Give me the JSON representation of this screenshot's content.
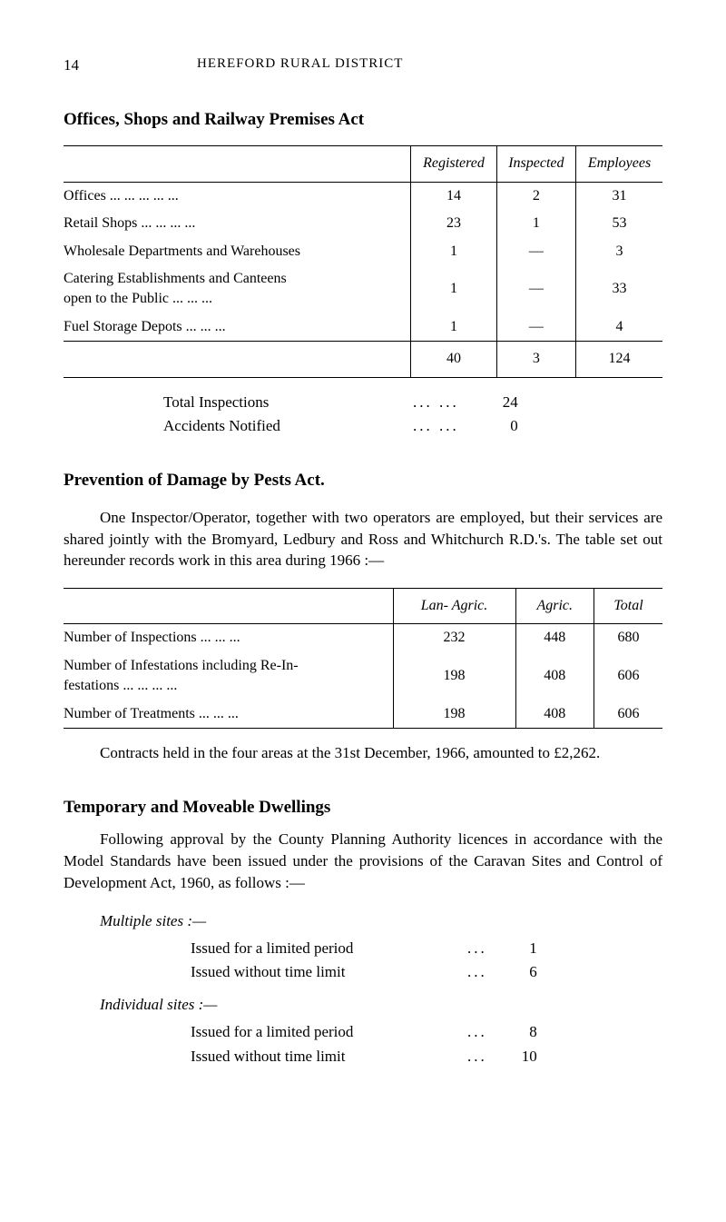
{
  "page": {
    "number": "14",
    "title": "HEREFORD RURAL DISTRICT"
  },
  "section1": {
    "heading": "Offices, Shops and Railway Premises Act",
    "table": {
      "columns": [
        "",
        "Registered",
        "Inspected",
        "Employees"
      ],
      "rows": [
        [
          "Offices       ...       ...       ...       ...       ...",
          "14",
          "2",
          "31"
        ],
        [
          "Retail Shops          ...       ...       ...       ...",
          "23",
          "1",
          "53"
        ],
        [
          "Wholesale Departments and Warehouses",
          "1",
          "—",
          "3"
        ],
        [
          "Catering Establishments   and   Canteens\n      open to the Public    ...        ...        ...",
          "1",
          "—",
          "33"
        ],
        [
          "Fuel Storage Depots        ...       ...       ...",
          "1",
          "—",
          "4"
        ]
      ],
      "totals": [
        "",
        "40",
        "3",
        "124"
      ]
    },
    "stats": [
      {
        "label": "Total Inspections",
        "value": "24"
      },
      {
        "label": "Accidents Notified",
        "value": "0"
      }
    ]
  },
  "section2": {
    "heading": "Prevention of Damage by Pests Act.",
    "para": "One Inspector/Operator, together with two operators are employed, but their services are shared jointly with the Bromyard, Ledbury and Ross and Whitchurch R.D.'s. The table set out hereunder records work in this area during 1966 :—",
    "table": {
      "columns": [
        "",
        "Lan- Agric.",
        "Agric.",
        "Total"
      ],
      "rows": [
        [
          "Number of Inspections      ...        ...        ...",
          "232",
          "448",
          "680"
        ],
        [
          "Number of Infestations including Re-In-\n   festations              ...       ...       ...       ...",
          "198",
          "408",
          "606"
        ],
        [
          "Number of Treatments     ...        ...        ...",
          "198",
          "408",
          "606"
        ]
      ]
    },
    "para2": "Contracts held in the four areas at the 31st December, 1966, amounted to £2,262."
  },
  "section3": {
    "heading": "Temporary and Moveable Dwellings",
    "para": "Following approval by the County Planning Authority licences in accordance with the Model Standards have been issued under the provisions of the Caravan Sites and Control of Development Act, 1960, as follows :—",
    "multiple": {
      "label": "Multiple sites :—",
      "items": [
        {
          "label": "Issued for a limited period",
          "value": "1"
        },
        {
          "label": "Issued without time limit",
          "value": "6"
        }
      ]
    },
    "individual": {
      "label": "Individual sites :—",
      "items": [
        {
          "label": "Issued for a limited period",
          "value": "8"
        },
        {
          "label": "Issued without time limit",
          "value": "10"
        }
      ]
    }
  }
}
